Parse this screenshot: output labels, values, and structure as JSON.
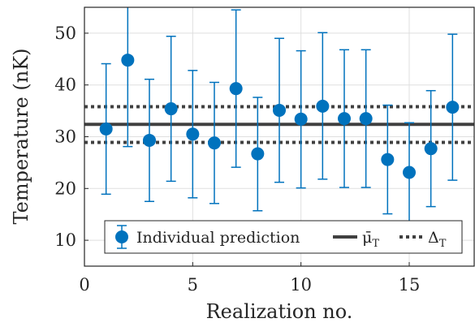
{
  "chart_data": {
    "type": "scatter",
    "xlabel": "Realization no.",
    "ylabel": "Temperature (nK)",
    "xlim": [
      0,
      18
    ],
    "ylim": [
      5,
      55
    ],
    "x_ticks": [
      0,
      5,
      10,
      15
    ],
    "y_ticks": [
      10,
      20,
      30,
      40,
      50
    ],
    "grid": true,
    "legend_placement": "bottom-center",
    "colors": {
      "points": "#0072BD",
      "lines": "#404040",
      "grid": "#dfdfdf",
      "axes": "#262626"
    },
    "series": [
      {
        "name": "Individual prediction",
        "type": "errorbar",
        "x": [
          1,
          2,
          3,
          4,
          5,
          6,
          7,
          8,
          9,
          10,
          11,
          12,
          13,
          14,
          15,
          16,
          17
        ],
        "y": [
          31.5,
          44.8,
          29.3,
          35.4,
          30.5,
          28.8,
          39.3,
          26.7,
          35.1,
          33.4,
          35.9,
          33.5,
          33.5,
          25.6,
          23.1,
          27.7,
          35.7
        ],
        "y_lower": [
          18.9,
          28.1,
          17.5,
          21.4,
          18.2,
          17.1,
          24.1,
          15.7,
          21.2,
          20.1,
          21.8,
          20.2,
          20.2,
          15.1,
          13.4,
          16.5,
          21.6
        ],
        "y_upper": [
          44.1,
          55.5,
          41.1,
          49.4,
          42.8,
          40.5,
          54.5,
          37.6,
          49.0,
          46.6,
          50.1,
          46.8,
          46.8,
          36.1,
          32.7,
          38.9,
          49.8
        ]
      },
      {
        "name": "μ̄T",
        "type": "hline",
        "y": 32.4
      },
      {
        "name": "ΔT",
        "type": "hline-dotted",
        "y": [
          28.9,
          35.8
        ]
      }
    ],
    "legend": {
      "individual": "Individual prediction",
      "mu_base": "μ̄",
      "mu_sub": "T",
      "delta_base": "Δ",
      "delta_sub": "T"
    }
  }
}
